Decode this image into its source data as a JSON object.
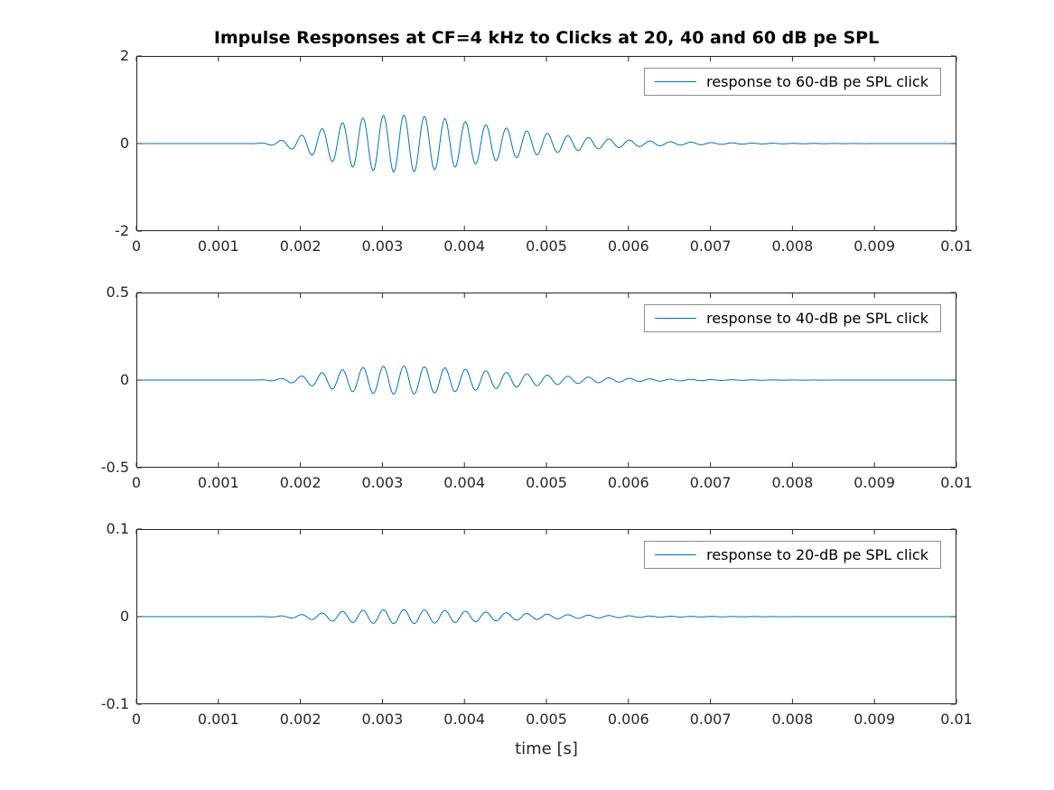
{
  "figure": {
    "title": "Impulse Responses at CF=4 kHz to Clicks at 20, 40 and 60 dB pe SPL",
    "xlabel": "time [s]",
    "background_color": "#ffffff",
    "axes_color": "#262626",
    "line_color": "#0072BD",
    "legend_border_color": "#8c8c8c"
  },
  "chart_data": [
    {
      "type": "line",
      "series_name": "response to 60-dB pe SPL click",
      "legend": "response to 60-dB pe SPL click",
      "legend_position": "top-right",
      "grid": false,
      "xlim": [
        0,
        0.01
      ],
      "ylim": [
        -2,
        2
      ],
      "xticks": [
        0,
        0.001,
        0.002,
        0.003,
        0.004,
        0.005,
        0.006,
        0.007,
        0.008,
        0.009,
        0.01
      ],
      "xtick_labels": [
        "0",
        "0.001",
        "0.002",
        "0.003",
        "0.004",
        "0.005",
        "0.006",
        "0.007",
        "0.008",
        "0.009",
        "0.01"
      ],
      "yticks": [
        2,
        0,
        -2
      ],
      "ytick_labels": [
        "2",
        "0",
        "-2"
      ],
      "waveform": {
        "model": "gammatone-click-response",
        "cf_hz": 4000,
        "onset_s": 0.0012,
        "tau_s": 0.0005,
        "envelope_order": 4,
        "peak_amplitude": 0.65,
        "phase_rad": 0,
        "peak_time_s": 0.0032,
        "visible_span_s": [
          0.0019,
          0.006
        ]
      }
    },
    {
      "type": "line",
      "series_name": "response to 40-dB pe SPL click",
      "legend": "response to 40-dB pe SPL click",
      "legend_position": "top-right",
      "grid": false,
      "xlim": [
        0,
        0.01
      ],
      "ylim": [
        -0.5,
        0.5
      ],
      "xticks": [
        0,
        0.001,
        0.002,
        0.003,
        0.004,
        0.005,
        0.006,
        0.007,
        0.008,
        0.009,
        0.01
      ],
      "xtick_labels": [
        "0",
        "0.001",
        "0.002",
        "0.003",
        "0.004",
        "0.005",
        "0.006",
        "0.007",
        "0.008",
        "0.009",
        "0.01"
      ],
      "yticks": [
        0.5,
        0,
        -0.5
      ],
      "ytick_labels": [
        "0.5",
        "0",
        "-0.5"
      ],
      "waveform": {
        "model": "gammatone-click-response",
        "cf_hz": 4000,
        "onset_s": 0.0012,
        "tau_s": 0.0005,
        "envelope_order": 4,
        "peak_amplitude": 0.08,
        "phase_rad": 0,
        "peak_time_s": 0.0032,
        "visible_span_s": [
          0.002,
          0.006
        ]
      }
    },
    {
      "type": "line",
      "series_name": "response to 20-dB pe SPL click",
      "legend": "response to 20-dB pe SPL click",
      "legend_position": "top-right",
      "grid": false,
      "xlim": [
        0,
        0.01
      ],
      "ylim": [
        -0.1,
        0.1
      ],
      "xticks": [
        0,
        0.001,
        0.002,
        0.003,
        0.004,
        0.005,
        0.006,
        0.007,
        0.008,
        0.009,
        0.01
      ],
      "xtick_labels": [
        "0",
        "0.001",
        "0.002",
        "0.003",
        "0.004",
        "0.005",
        "0.006",
        "0.007",
        "0.008",
        "0.009",
        "0.01"
      ],
      "yticks": [
        0.1,
        0,
        -0.1
      ],
      "ytick_labels": [
        "0.1",
        "0",
        "-0.1"
      ],
      "waveform": {
        "model": "gammatone-click-response",
        "cf_hz": 4000,
        "onset_s": 0.0012,
        "tau_s": 0.0005,
        "envelope_order": 4,
        "peak_amplitude": 0.008,
        "phase_rad": 0,
        "peak_time_s": 0.0032,
        "visible_span_s": [
          0.0022,
          0.0058
        ]
      }
    }
  ]
}
